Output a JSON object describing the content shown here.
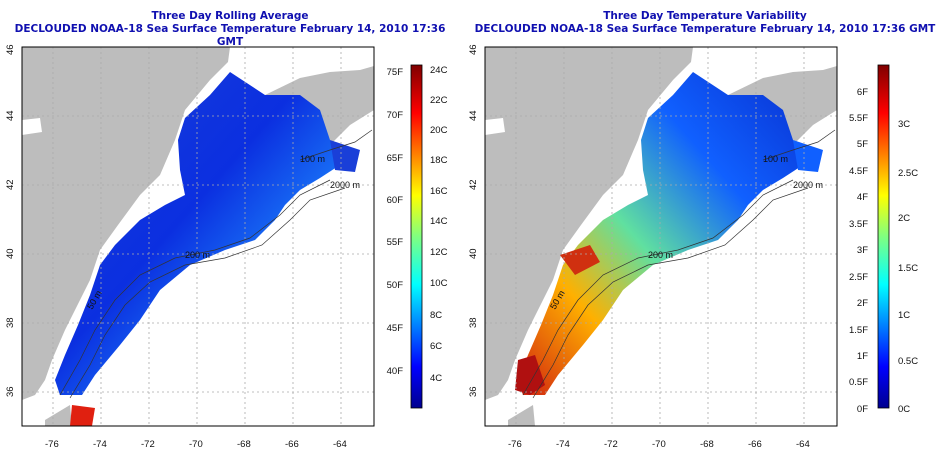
{
  "left_panel": {
    "title_line1": "Three Day Rolling Average",
    "title_line2": "DECLOUDED NOAA-18 Sea Surface Temperature February 14, 2010 17:36 GMT",
    "contour_labels": [
      "200 m",
      "100 m",
      "2000 m",
      "50 m"
    ]
  },
  "right_panel": {
    "title_line1": "Three Day Temperature Variability",
    "title_line2": "DECLOUDED NOAA-18 Sea Surface Temperature February 14, 2010 17:36 GMT",
    "contour_labels": [
      "200 m",
      "100 m",
      "2000 m",
      "50 m"
    ]
  },
  "map_axes": {
    "lon_ticks": [
      "-76",
      "-74",
      "-72",
      "-70",
      "-68",
      "-66",
      "-64"
    ],
    "lat_ticks": [
      "36",
      "38",
      "40",
      "42",
      "44",
      "46"
    ]
  },
  "left_colorbar": {
    "fahrenheit": [
      "75F",
      "70F",
      "65F",
      "60F",
      "55F",
      "50F",
      "45F",
      "40F"
    ],
    "celsius": [
      "24C",
      "22C",
      "20C",
      "18C",
      "16C",
      "14C",
      "12C",
      "10C",
      "8C",
      "6C",
      "4C"
    ]
  },
  "right_colorbar": {
    "fahrenheit": [
      "6F",
      "5.5F",
      "5F",
      "4.5F",
      "4F",
      "3.5F",
      "3F",
      "2.5F",
      "2F",
      "1.5F",
      "1F",
      "0.5F",
      "0F"
    ],
    "celsius": [
      "3C",
      "2.5C",
      "2C",
      "1.5C",
      "1C",
      "0.5C",
      "0C"
    ]
  },
  "colors": {
    "land": "#bdbdbd",
    "ocean_missing": "#ffffff",
    "title": "#1010b0",
    "colormap": [
      "#00008f",
      "#0000ff",
      "#0080ff",
      "#00ffff",
      "#80ff80",
      "#ffff00",
      "#ff8000",
      "#ff0000",
      "#800000"
    ]
  }
}
